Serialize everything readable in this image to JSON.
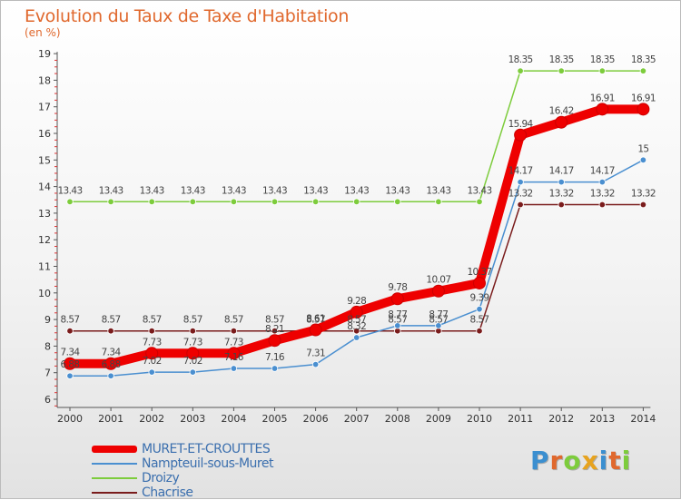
{
  "title": "Evolution du Taux de Taxe d'Habitation",
  "unit_label": "(en %)",
  "logo": {
    "text": "Proxiti"
  },
  "chart_data": {
    "type": "line",
    "title": "Evolution du Taux de Taxe d'Habitation",
    "ylabel": "(en %)",
    "xlabel": "",
    "x": [
      "2000",
      "2001",
      "2002",
      "2003",
      "2004",
      "2005",
      "2006",
      "2007",
      "2008",
      "2009",
      "2010",
      "2011",
      "2012",
      "2013",
      "2014"
    ],
    "ylim": [
      6,
      19
    ],
    "yticks": [
      "6",
      "7",
      "8",
      "9",
      "10",
      "11",
      "12",
      "13",
      "14",
      "15",
      "16",
      "17",
      "18",
      "19"
    ],
    "grid": false,
    "legend_position": "bottom-left",
    "series": [
      {
        "name": "MURET-ET-CROUTTES",
        "color": "#ee0000",
        "values": [
          7.34,
          7.34,
          7.73,
          7.73,
          7.73,
          8.21,
          8.61,
          9.28,
          9.78,
          10.07,
          10.37,
          15.94,
          16.42,
          16.91,
          16.91
        ],
        "labels": [
          "7.34",
          "7.34",
          "7.73",
          "7.73",
          "7.73",
          "8.21",
          "8.61",
          "9.28",
          "9.78",
          "10.07",
          "10.37",
          "15.94",
          "16.42",
          "16.91",
          "16.91"
        ]
      },
      {
        "name": "Nampteuil-sous-Muret",
        "color": "#4a8fd0",
        "values": [
          6.88,
          6.88,
          7.02,
          7.02,
          7.16,
          7.16,
          7.31,
          8.32,
          8.77,
          8.77,
          9.39,
          14.17,
          14.17,
          14.17,
          15
        ],
        "labels": [
          "6.88",
          "6.88",
          "7.02",
          "7.02",
          "7.16",
          "7.16",
          "7.31",
          "8.32",
          "8.77",
          "8.77",
          "9.39",
          "14.17",
          "14.17",
          "14.17",
          "15"
        ]
      },
      {
        "name": "Droizy",
        "color": "#7dcc3c",
        "values": [
          13.43,
          13.43,
          13.43,
          13.43,
          13.43,
          13.43,
          13.43,
          13.43,
          13.43,
          13.43,
          13.43,
          18.35,
          18.35,
          18.35,
          18.35
        ],
        "labels": [
          "13.43",
          "13.43",
          "13.43",
          "13.43",
          "13.43",
          "13.43",
          "13.43",
          "13.43",
          "13.43",
          "13.43",
          "13.43",
          "18.35",
          "18.35",
          "18.35",
          "18.35"
        ]
      },
      {
        "name": "Chacrise",
        "color": "#7a1c1c",
        "values": [
          8.57,
          8.57,
          8.57,
          8.57,
          8.57,
          8.57,
          8.57,
          8.57,
          8.57,
          8.57,
          8.57,
          13.32,
          13.32,
          13.32,
          13.32
        ],
        "labels": [
          "8.57",
          "8.57",
          "8.57",
          "8.57",
          "8.57",
          "8.57",
          "8.57",
          "8.57",
          "8.57",
          "8.57",
          "8.57",
          "13.32",
          "13.32",
          "13.32",
          "13.32"
        ]
      }
    ]
  }
}
